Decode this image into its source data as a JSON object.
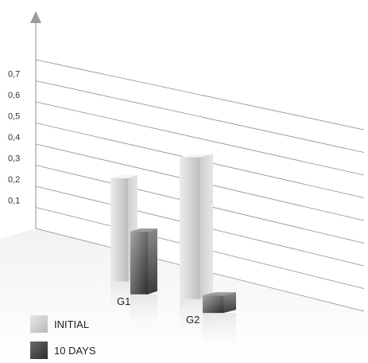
{
  "chart_data": {
    "type": "bar",
    "categories": [
      "G1",
      "G2"
    ],
    "series": [
      {
        "name": "INITIAL",
        "values": [
          0.48,
          0.65
        ],
        "color": "#d6d6d6"
      },
      {
        "name": "10 DAYS",
        "values": [
          0.29,
          0.08
        ],
        "color": "#4d4d4d"
      }
    ],
    "y_ticks": [
      "0,1",
      "0,2",
      "0,3",
      "0,4",
      "0,5",
      "0,6",
      "0,7"
    ],
    "ylim": [
      0,
      0.8
    ],
    "grid": true,
    "legend_position": "bottom-left"
  }
}
